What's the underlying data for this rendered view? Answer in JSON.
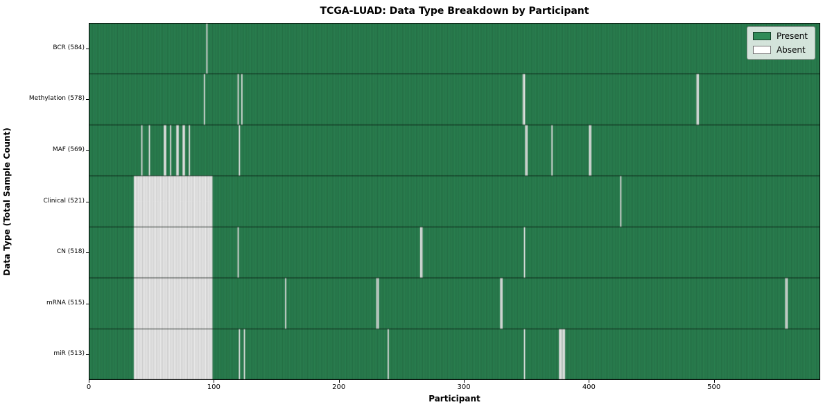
{
  "chart_data": {
    "type": "heatmap",
    "title": "TCGA-LUAD: Data Type Breakdown by Participant",
    "xlabel": "Participant",
    "ylabel": "Data Type (Total Sample Count)",
    "x_range": [
      0,
      585
    ],
    "x_ticks": [
      0,
      100,
      200,
      300,
      400,
      500
    ],
    "grid": false,
    "legend_position": "upper right",
    "legend": [
      {
        "label": "Present",
        "color": "#2e8b57"
      },
      {
        "label": "Absent",
        "color": "#ffffff"
      }
    ],
    "colors": {
      "present": "#2e8b57",
      "absent": "#ffffff",
      "cell_edge": "rgba(0,0,0,0.42)",
      "row_separator": "rgba(0,0,0,0.85)",
      "plot_border": "#000000"
    },
    "rows": [
      {
        "label": "BCR (584)",
        "data_type": "BCR",
        "present_count": 584,
        "absent_ranges": [],
        "absent": [
          94
        ]
      },
      {
        "label": "Methylation (578)",
        "data_type": "Methylation",
        "present_count": 578,
        "absent_ranges": [],
        "absent": [
          92,
          119,
          122,
          347,
          348,
          486,
          487
        ]
      },
      {
        "label": "MAF (569)",
        "data_type": "MAF",
        "present_count": 569,
        "absent_ranges": [],
        "absent": [
          42,
          48,
          60,
          61,
          65,
          70,
          71,
          75,
          76,
          80,
          120,
          349,
          350,
          370,
          400,
          401
        ]
      },
      {
        "label": "Clinical (521)",
        "data_type": "Clinical",
        "present_count": 521,
        "absent_ranges": [
          [
            36,
            98
          ]
        ],
        "absent": [
          425
        ]
      },
      {
        "label": "CN (518)",
        "data_type": "CN",
        "present_count": 518,
        "absent_ranges": [
          [
            36,
            98
          ]
        ],
        "absent": [
          119,
          265,
          266,
          348
        ]
      },
      {
        "label": "mRNA (515)",
        "data_type": "mRNA",
        "present_count": 515,
        "absent_ranges": [
          [
            36,
            98
          ]
        ],
        "absent": [
          157,
          230,
          231,
          329,
          330,
          557,
          558
        ]
      },
      {
        "label": "miR (513)",
        "data_type": "miR",
        "present_count": 513,
        "absent_ranges": [
          [
            36,
            98
          ]
        ],
        "absent": [
          120,
          124,
          239,
          348,
          376,
          377,
          378,
          379,
          380
        ]
      }
    ]
  }
}
